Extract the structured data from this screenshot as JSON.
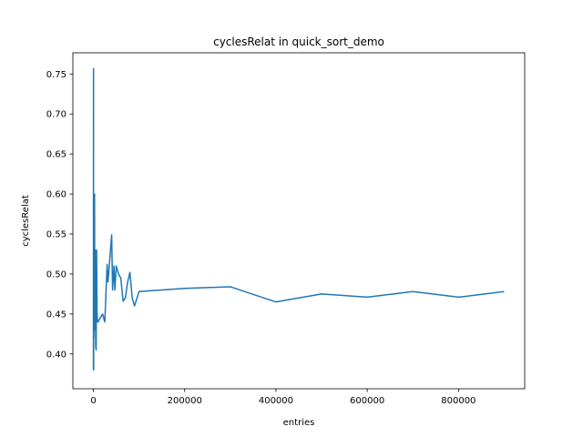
{
  "chart_data": {
    "type": "line",
    "title": "cyclesRelat in quick_sort_demo",
    "xlabel": "entries",
    "ylabel": "cyclesRelat",
    "xlim": [
      -45000,
      945000
    ],
    "ylim": [
      0.3565,
      0.7765
    ],
    "xticks": [
      0,
      200000,
      400000,
      600000,
      800000
    ],
    "xtick_labels": [
      "0",
      "200000",
      "400000",
      "600000",
      "800000"
    ],
    "yticks": [
      0.4,
      0.45,
      0.5,
      0.55,
      0.6,
      0.65,
      0.7,
      0.75
    ],
    "ytick_labels": [
      "0.40",
      "0.45",
      "0.50",
      "0.55",
      "0.60",
      "0.65",
      "0.70",
      "0.75"
    ],
    "grid": false,
    "color": "#1f77b4",
    "series": [
      {
        "x": [
          0,
          100,
          200,
          300,
          500,
          700,
          1000,
          1500,
          2000,
          2500,
          3000,
          4000,
          5000,
          6000,
          7000,
          8000,
          9000,
          10000,
          20000,
          25000,
          30000,
          32000,
          40000,
          42000,
          45000,
          47000,
          50000,
          55000,
          60000,
          65000,
          70000,
          75000,
          80000,
          85000,
          90000,
          100000,
          200000,
          300000,
          400000,
          500000,
          600000,
          700000,
          800000,
          900000
        ],
        "y": [
          0.38,
          0.575,
          0.757,
          0.42,
          0.38,
          0.6,
          0.42,
          0.55,
          0.43,
          0.6,
          0.44,
          0.53,
          0.41,
          0.405,
          0.53,
          0.45,
          0.44,
          0.44,
          0.45,
          0.44,
          0.512,
          0.49,
          0.549,
          0.48,
          0.51,
          0.48,
          0.51,
          0.5,
          0.495,
          0.466,
          0.47,
          0.49,
          0.502,
          0.47,
          0.46,
          0.478,
          0.482,
          0.484,
          0.465,
          0.475,
          0.471,
          0.478,
          0.471,
          0.478
        ]
      }
    ]
  }
}
